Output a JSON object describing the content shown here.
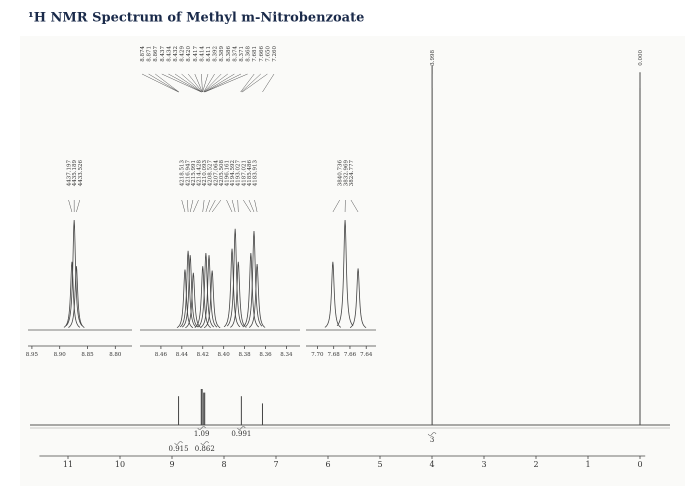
{
  "chart_data": {
    "type": "nmr",
    "title": "¹H NMR Spectrum of Methyl m-Nitrobenzoate",
    "xlim": [
      11.55,
      -0.1
    ],
    "xticks": [
      11,
      10,
      9,
      8,
      7,
      6,
      5,
      4,
      3,
      2,
      1,
      0
    ],
    "x": [
      8.874,
      8.437,
      8.42,
      8.39,
      8.371,
      7.666,
      7.26,
      3.998,
      0
    ],
    "values": [
      8,
      10,
      10,
      9,
      9,
      8,
      6,
      100,
      98
    ],
    "color": "#444",
    "peak_labels": [
      {
        "value": 8.874,
        "label": "8.874"
      },
      {
        "value": 8.871,
        "label": "8.871"
      },
      {
        "value": 8.867,
        "label": "8.867"
      },
      {
        "value": 8.437,
        "label": "8.437"
      },
      {
        "value": 8.434,
        "label": "8.434"
      },
      {
        "value": 8.432,
        "label": "8.432"
      },
      {
        "value": 8.429,
        "label": "8.429"
      },
      {
        "value": 8.42,
        "label": "8.420"
      },
      {
        "value": 8.417,
        "label": "8.417"
      },
      {
        "value": 8.414,
        "label": "8.414"
      },
      {
        "value": 8.411,
        "label": "8.411"
      },
      {
        "value": 8.392,
        "label": "8.392"
      },
      {
        "value": 8.389,
        "label": "8.389"
      },
      {
        "value": 8.386,
        "label": "8.386"
      },
      {
        "value": 8.374,
        "label": "8.374"
      },
      {
        "value": 8.371,
        "label": "8.371"
      },
      {
        "value": 8.368,
        "label": "8.368"
      },
      {
        "value": 7.681,
        "label": "7.681"
      },
      {
        "value": 7.666,
        "label": "7.666"
      },
      {
        "value": 7.65,
        "label": "7.650"
      },
      {
        "value": 7.26,
        "label": "7.260"
      },
      {
        "value": 3.998,
        "label": "3.998"
      },
      {
        "value": 0,
        "label": "0.000"
      }
    ],
    "integrals": {
      "x": [
        8.874,
        8.43,
        8.37,
        7.666,
        3.998
      ],
      "values": [
        0.915,
        1.09,
        0.862,
        0.991,
        3
      ]
    },
    "insets": [
      {
        "xlim": [
          8.957,
          8.77
        ],
        "xticks": [
          {
            "value": 8.95,
            "label": "8.95"
          },
          {
            "value": 8.9,
            "label": "8.90"
          },
          {
            "value": 8.85,
            "label": "8.85"
          },
          {
            "value": 8.8,
            "label": "8.80"
          }
        ],
        "x": [
          8.878,
          8.874,
          8.87
        ],
        "values": [
          62,
          100,
          58
        ],
        "peak_hz": [
          4437.197,
          4435.189,
          4433.526
        ]
      },
      {
        "xlim": [
          8.48,
          8.327
        ],
        "xticks": [
          {
            "value": 8.46,
            "label": "8.46"
          },
          8.44,
          8.42,
          {
            "value": 8.4,
            "label": "8.40"
          },
          8.38,
          8.36,
          8.34
        ],
        "x": [
          8.437,
          8.434,
          8.432,
          8.429,
          8.42,
          8.417,
          8.414,
          8.411,
          8.392,
          8.389,
          8.386,
          8.374,
          8.371,
          8.368
        ],
        "values": [
          55,
          72,
          68,
          52,
          58,
          70,
          68,
          54,
          74,
          92,
          62,
          70,
          90,
          60
        ],
        "peak_hz": [
          4218.513,
          4216.947,
          4215.991,
          4214.428,
          4210.093,
          4208.527,
          4207.064,
          4205.508,
          4196.161,
          4194.592,
          4193.027,
          4187.021,
          4185.486,
          4183.913
        ]
      },
      {
        "xlim": [
          7.714,
          7.628
        ],
        "xticks": [
          {
            "value": 7.7,
            "label": "7.70"
          },
          7.68,
          7.66,
          7.64
        ],
        "x": [
          7.681,
          7.666,
          7.65
        ],
        "values": [
          62,
          100,
          56
        ],
        "peak_hz": [
          3840.736,
          3832.969,
          3824.777
        ]
      }
    ]
  }
}
